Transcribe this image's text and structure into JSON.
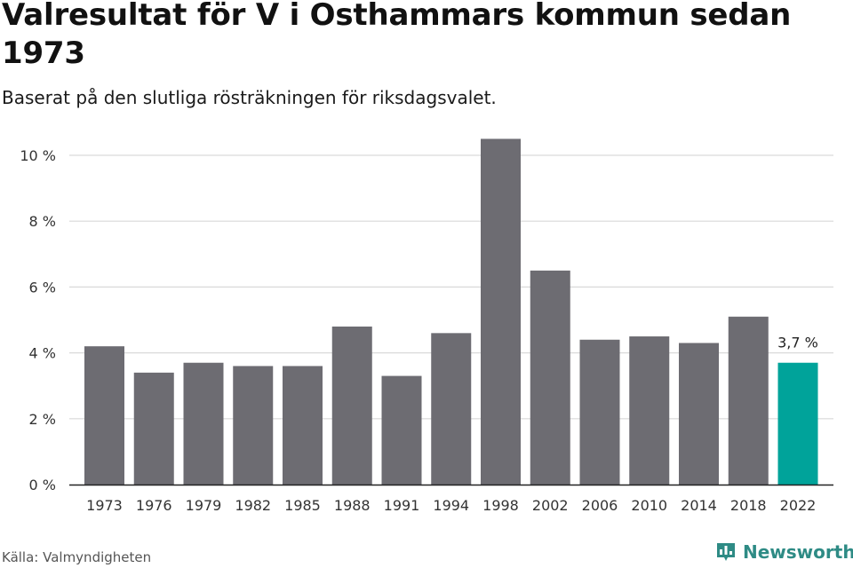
{
  "header": {
    "title": "Valresultat för V i Osthammars kommun sedan 1973",
    "subtitle": "Baserat på den slutliga rösträkningen för riksdagsvalet."
  },
  "footer": {
    "source": "Källa: Valmyndigheten",
    "brand": "Newsworthy"
  },
  "colors": {
    "bar": "#6d6c72",
    "highlight": "#00a39a",
    "grid": "#d9d9d9",
    "axis": "#222222",
    "brand": "#2e8b85"
  },
  "chart_data": {
    "type": "bar",
    "categories": [
      "1973",
      "1976",
      "1979",
      "1982",
      "1985",
      "1988",
      "1991",
      "1994",
      "1998",
      "2002",
      "2006",
      "2010",
      "2014",
      "2018",
      "2022"
    ],
    "values": [
      4.2,
      3.4,
      3.7,
      3.6,
      3.6,
      4.8,
      3.3,
      4.6,
      10.5,
      6.5,
      4.4,
      4.5,
      4.3,
      5.1,
      3.7
    ],
    "highlight_index": 14,
    "data_labels": [
      {
        "index": 14,
        "text": "3,7 %"
      }
    ],
    "yticks": [
      0,
      2,
      4,
      6,
      8,
      10
    ],
    "ytick_labels": [
      "0 %",
      "2 %",
      "4 %",
      "6 %",
      "8 %",
      "10 %"
    ],
    "ylim": [
      0,
      10.5
    ],
    "grid": true,
    "legend": "none",
    "xlabel": "",
    "ylabel": ""
  }
}
